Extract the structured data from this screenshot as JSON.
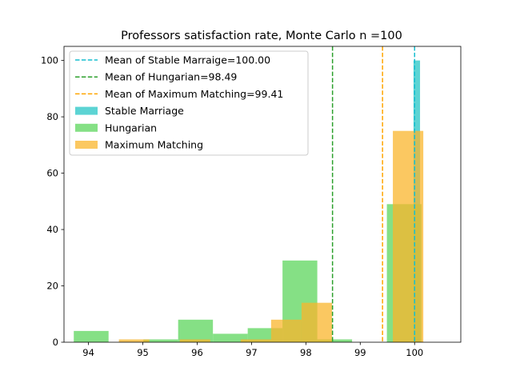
{
  "chart_data": {
    "type": "bar",
    "title": "Professors satisfaction rate, Monte Carlo n =100",
    "xlabel": "",
    "ylabel": "",
    "xlim": [
      93.55,
      100.85
    ],
    "ylim": [
      0,
      105
    ],
    "x_ticks": [
      94,
      95,
      96,
      97,
      98,
      99,
      100
    ],
    "y_ticks": [
      0,
      20,
      40,
      60,
      80,
      100
    ],
    "grid": false,
    "legend_position": "upper-left",
    "series": [
      {
        "name": "Stable Marriage",
        "color": "#26c6c6",
        "opacity": 0.75,
        "bins": [
          {
            "x0": 99.98,
            "x1": 100.1,
            "count": 100
          }
        ]
      },
      {
        "name": "Hungarian",
        "color": "#5cd65c",
        "opacity": 0.75,
        "bins": [
          {
            "x0": 93.73,
            "x1": 94.37,
            "count": 4
          },
          {
            "x0": 95.01,
            "x1": 95.65,
            "count": 1
          },
          {
            "x0": 95.65,
            "x1": 96.29,
            "count": 8
          },
          {
            "x0": 96.29,
            "x1": 96.93,
            "count": 3
          },
          {
            "x0": 96.93,
            "x1": 97.57,
            "count": 5
          },
          {
            "x0": 97.57,
            "x1": 98.21,
            "count": 29
          },
          {
            "x0": 98.21,
            "x1": 98.85,
            "count": 1
          },
          {
            "x0": 99.49,
            "x1": 100.13,
            "count": 49
          }
        ]
      },
      {
        "name": "Maximum Matching",
        "color": "#f9b52c",
        "opacity": 0.75,
        "bins": [
          {
            "x0": 94.56,
            "x1": 95.12,
            "count": 1
          },
          {
            "x0": 95.68,
            "x1": 96.24,
            "count": 1
          },
          {
            "x0": 96.8,
            "x1": 97.36,
            "count": 1
          },
          {
            "x0": 97.36,
            "x1": 97.92,
            "count": 8
          },
          {
            "x0": 97.92,
            "x1": 98.48,
            "count": 14
          },
          {
            "x0": 99.6,
            "x1": 100.16,
            "count": 75
          }
        ]
      }
    ],
    "mean_lines": [
      {
        "name": "Mean of Stable Marraige=100.00",
        "x": 100.0,
        "color": "#17becf"
      },
      {
        "name": "Mean of Hungarian=98.49",
        "x": 98.49,
        "color": "#2ca02c"
      },
      {
        "name": "Mean of Maximum Matching=99.41",
        "x": 99.41,
        "color": "#ffa500"
      }
    ]
  }
}
